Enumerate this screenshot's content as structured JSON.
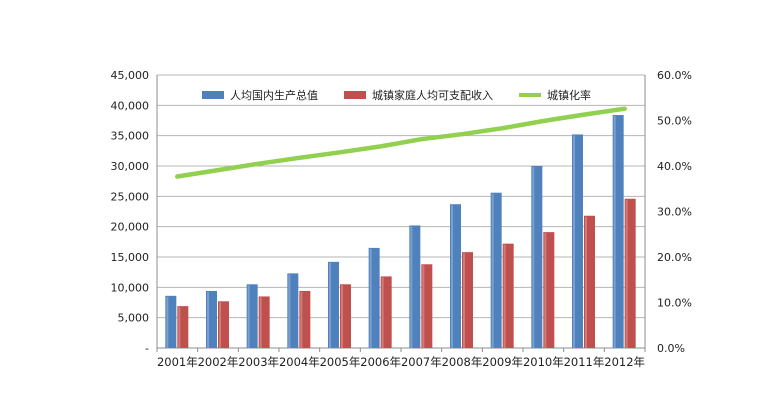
{
  "chart_data": {
    "type": "bar",
    "categories": [
      "2001年",
      "2002年",
      "2003年",
      "2004年",
      "2005年",
      "2006年",
      "2007年",
      "2008年",
      "2009年",
      "2010年",
      "2011年",
      "2012年"
    ],
    "series": [
      {
        "name": "人均国内生产总值",
        "type": "bar",
        "axis": "left",
        "color": "#4F81BD",
        "values": [
          8600,
          9400,
          10500,
          12300,
          14200,
          16500,
          20200,
          23700,
          25600,
          30000,
          35200,
          38400
        ]
      },
      {
        "name": "城镇家庭人均可支配收入",
        "type": "bar",
        "axis": "left",
        "color": "#C0504D",
        "values": [
          6900,
          7700,
          8500,
          9400,
          10500,
          11800,
          13800,
          15800,
          17200,
          19100,
          21800,
          24600
        ]
      },
      {
        "name": "城镇化率",
        "type": "line",
        "axis": "right",
        "color": "#92D050",
        "values": [
          37.7,
          39.1,
          40.5,
          41.8,
          43.0,
          44.3,
          45.9,
          47.0,
          48.3,
          49.9,
          51.3,
          52.6
        ]
      }
    ],
    "y_left": {
      "min": 0,
      "max": 45000,
      "step": 5000,
      "tick_labels": [
        "-",
        "5,000",
        "10,000",
        "15,000",
        "20,000",
        "25,000",
        "30,000",
        "35,000",
        "40,000",
        "45,000"
      ]
    },
    "y_right": {
      "min": 0,
      "max": 60,
      "step": 10,
      "tick_labels": [
        "0.0%",
        "10.0%",
        "20.0%",
        "30.0%",
        "40.0%",
        "50.0%",
        "60.0%"
      ]
    },
    "grid": true,
    "legend_position": "top"
  }
}
